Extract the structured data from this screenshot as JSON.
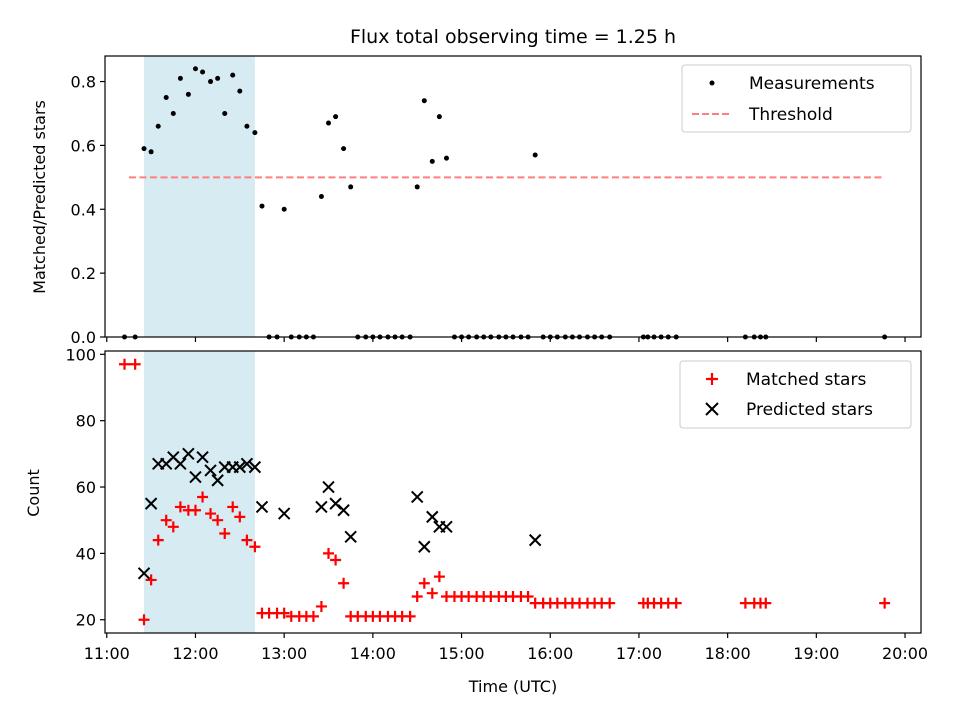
{
  "chart_data": [
    {
      "type": "scatter",
      "title": "Flux total observing time = 1.25 h",
      "xlabel": "",
      "ylabel": "Matched/Predicted stars",
      "ylim": [
        0,
        0.88
      ],
      "yticks": [
        "0.0",
        "0.2",
        "0.4",
        "0.6",
        "0.8"
      ],
      "ytick_values": [
        0,
        0.2,
        0.4,
        0.6,
        0.8
      ],
      "legend_position": "top-right",
      "highlight_span": {
        "x_start": 11.42,
        "x_end": 12.67,
        "color": "#add8e6"
      },
      "series": [
        {
          "name": "Measurements",
          "kind": "points",
          "color": "#000000",
          "points": [
            [
              11.2,
              0
            ],
            [
              11.32,
              0
            ],
            [
              11.42,
              0.59
            ],
            [
              11.5,
              0.58
            ],
            [
              11.58,
              0.66
            ],
            [
              11.67,
              0.75
            ],
            [
              11.75,
              0.7
            ],
            [
              11.83,
              0.81
            ],
            [
              11.92,
              0.76
            ],
            [
              12.0,
              0.84
            ],
            [
              12.08,
              0.83
            ],
            [
              12.17,
              0.8
            ],
            [
              12.25,
              0.81
            ],
            [
              12.33,
              0.7
            ],
            [
              12.42,
              0.82
            ],
            [
              12.5,
              0.77
            ],
            [
              12.58,
              0.66
            ],
            [
              12.67,
              0.64
            ],
            [
              12.75,
              0.41
            ],
            [
              12.83,
              0
            ],
            [
              12.92,
              0
            ],
            [
              13.0,
              0.4
            ],
            [
              13.08,
              0
            ],
            [
              13.17,
              0
            ],
            [
              13.25,
              0
            ],
            [
              13.33,
              0
            ],
            [
              13.42,
              0.44
            ],
            [
              13.5,
              0.67
            ],
            [
              13.58,
              0.69
            ],
            [
              13.67,
              0.59
            ],
            [
              13.75,
              0.47
            ],
            [
              13.83,
              0
            ],
            [
              13.92,
              0
            ],
            [
              14.0,
              0
            ],
            [
              14.08,
              0
            ],
            [
              14.17,
              0
            ],
            [
              14.25,
              0
            ],
            [
              14.33,
              0
            ],
            [
              14.42,
              0
            ],
            [
              14.5,
              0.47
            ],
            [
              14.58,
              0.74
            ],
            [
              14.67,
              0.55
            ],
            [
              14.75,
              0.69
            ],
            [
              14.83,
              0.56
            ],
            [
              14.92,
              0
            ],
            [
              15.0,
              0
            ],
            [
              15.08,
              0
            ],
            [
              15.17,
              0
            ],
            [
              15.25,
              0
            ],
            [
              15.33,
              0
            ],
            [
              15.42,
              0
            ],
            [
              15.5,
              0
            ],
            [
              15.58,
              0
            ],
            [
              15.67,
              0
            ],
            [
              15.75,
              0
            ],
            [
              15.83,
              0.57
            ],
            [
              15.92,
              0
            ],
            [
              16.0,
              0
            ],
            [
              16.08,
              0
            ],
            [
              16.17,
              0
            ],
            [
              16.25,
              0
            ],
            [
              16.33,
              0
            ],
            [
              16.42,
              0
            ],
            [
              16.5,
              0
            ],
            [
              16.58,
              0
            ],
            [
              16.67,
              0
            ],
            [
              17.05,
              0
            ],
            [
              17.1,
              0
            ],
            [
              17.17,
              0
            ],
            [
              17.25,
              0
            ],
            [
              17.33,
              0
            ],
            [
              17.42,
              0
            ],
            [
              18.2,
              0
            ],
            [
              18.3,
              0
            ],
            [
              18.37,
              0
            ],
            [
              18.43,
              0
            ],
            [
              19.77,
              0
            ]
          ]
        },
        {
          "name": "Threshold",
          "kind": "dashed-line",
          "color": "#ff7f7f",
          "x": [
            11.25,
            19.77
          ],
          "y": [
            0.5,
            0.5
          ]
        }
      ]
    },
    {
      "type": "scatter",
      "title": "",
      "xlabel": "Time (UTC)",
      "ylabel": "Count",
      "xlim": [
        10.98,
        20.18
      ],
      "ylim": [
        16,
        101
      ],
      "xtick_values": [
        11,
        12,
        13,
        14,
        15,
        16,
        17,
        18,
        19,
        20
      ],
      "xticks": [
        "11:00",
        "12:00",
        "13:00",
        "14:00",
        "15:00",
        "16:00",
        "17:00",
        "18:00",
        "19:00",
        "20:00"
      ],
      "yticks": [
        "20",
        "40",
        "60",
        "80",
        "100"
      ],
      "ytick_values": [
        20,
        40,
        60,
        80,
        100
      ],
      "legend_position": "top-right",
      "highlight_span": {
        "x_start": 11.42,
        "x_end": 12.67,
        "color": "#add8e6"
      },
      "series": [
        {
          "name": "Matched stars",
          "marker": "plus",
          "color": "#ff0000",
          "points": [
            [
              11.2,
              97
            ],
            [
              11.32,
              97
            ],
            [
              11.42,
              20
            ],
            [
              11.5,
              32
            ],
            [
              11.58,
              44
            ],
            [
              11.67,
              50
            ],
            [
              11.75,
              48
            ],
            [
              11.83,
              54
            ],
            [
              11.92,
              53
            ],
            [
              12.0,
              53
            ],
            [
              12.08,
              57
            ],
            [
              12.17,
              52
            ],
            [
              12.25,
              50
            ],
            [
              12.33,
              46
            ],
            [
              12.42,
              54
            ],
            [
              12.5,
              51
            ],
            [
              12.58,
              44
            ],
            [
              12.67,
              42
            ],
            [
              12.75,
              22
            ],
            [
              12.83,
              22
            ],
            [
              12.92,
              22
            ],
            [
              13.0,
              22
            ],
            [
              13.08,
              21
            ],
            [
              13.17,
              21
            ],
            [
              13.25,
              21
            ],
            [
              13.33,
              21
            ],
            [
              13.42,
              24
            ],
            [
              13.5,
              40
            ],
            [
              13.58,
              38
            ],
            [
              13.67,
              31
            ],
            [
              13.75,
              21
            ],
            [
              13.83,
              21
            ],
            [
              13.92,
              21
            ],
            [
              14.0,
              21
            ],
            [
              14.08,
              21
            ],
            [
              14.17,
              21
            ],
            [
              14.25,
              21
            ],
            [
              14.33,
              21
            ],
            [
              14.42,
              21
            ],
            [
              14.5,
              27
            ],
            [
              14.58,
              31
            ],
            [
              14.67,
              28
            ],
            [
              14.75,
              33
            ],
            [
              14.83,
              27
            ],
            [
              14.92,
              27
            ],
            [
              15.0,
              27
            ],
            [
              15.08,
              27
            ],
            [
              15.17,
              27
            ],
            [
              15.25,
              27
            ],
            [
              15.33,
              27
            ],
            [
              15.42,
              27
            ],
            [
              15.5,
              27
            ],
            [
              15.58,
              27
            ],
            [
              15.67,
              27
            ],
            [
              15.75,
              27
            ],
            [
              15.83,
              25
            ],
            [
              15.92,
              25
            ],
            [
              16.0,
              25
            ],
            [
              16.08,
              25
            ],
            [
              16.17,
              25
            ],
            [
              16.25,
              25
            ],
            [
              16.33,
              25
            ],
            [
              16.42,
              25
            ],
            [
              16.5,
              25
            ],
            [
              16.58,
              25
            ],
            [
              16.67,
              25
            ],
            [
              17.05,
              25
            ],
            [
              17.1,
              25
            ],
            [
              17.17,
              25
            ],
            [
              17.25,
              25
            ],
            [
              17.33,
              25
            ],
            [
              17.42,
              25
            ],
            [
              18.2,
              25
            ],
            [
              18.3,
              25
            ],
            [
              18.37,
              25
            ],
            [
              18.43,
              25
            ],
            [
              19.77,
              25
            ]
          ]
        },
        {
          "name": "Predicted stars",
          "marker": "x",
          "color": "#000000",
          "points": [
            [
              11.42,
              34
            ],
            [
              11.5,
              55
            ],
            [
              11.58,
              67
            ],
            [
              11.67,
              67
            ],
            [
              11.75,
              69
            ],
            [
              11.83,
              67
            ],
            [
              11.92,
              70
            ],
            [
              12.0,
              63
            ],
            [
              12.08,
              69
            ],
            [
              12.17,
              65
            ],
            [
              12.25,
              62
            ],
            [
              12.33,
              66
            ],
            [
              12.42,
              66
            ],
            [
              12.5,
              66
            ],
            [
              12.58,
              67
            ],
            [
              12.67,
              66
            ],
            [
              12.75,
              54
            ],
            [
              13.0,
              52
            ],
            [
              13.42,
              54
            ],
            [
              13.5,
              60
            ],
            [
              13.58,
              55
            ],
            [
              13.67,
              53
            ],
            [
              13.75,
              45
            ],
            [
              14.5,
              57
            ],
            [
              14.58,
              42
            ],
            [
              14.67,
              51
            ],
            [
              14.75,
              48
            ],
            [
              14.83,
              48
            ],
            [
              15.83,
              44
            ]
          ]
        }
      ]
    }
  ]
}
